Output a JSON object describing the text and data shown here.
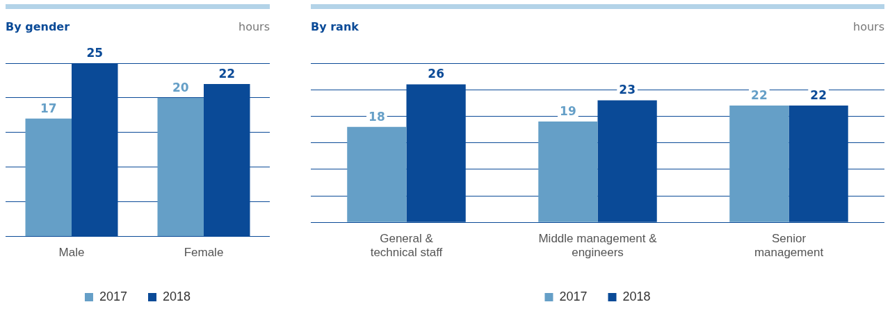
{
  "chart_data": [
    {
      "type": "bar",
      "title": "By gender",
      "annotations": [
        "hours"
      ],
      "categories": [
        "Male",
        "Female"
      ],
      "series": [
        {
          "name": "2017",
          "color": "#659fc7",
          "values": [
            17,
            20
          ]
        },
        {
          "name": "2018",
          "color": "#0a4a97",
          "values": [
            25,
            22
          ]
        }
      ],
      "ylim": [
        0,
        25
      ],
      "yticks": [
        {
          "value": 0,
          "label": null
        },
        {
          "value": 5,
          "label": null
        },
        {
          "value": 10,
          "label": null
        },
        {
          "value": 15,
          "label": null
        },
        {
          "value": 20,
          "label": null
        },
        {
          "value": 25,
          "label": null
        }
      ],
      "grid": "y",
      "tick_labels": "x",
      "data_labels": true,
      "legend": "bottom"
    },
    {
      "type": "bar",
      "title": "By rank",
      "annotations": [
        "hours"
      ],
      "categories": [
        "General & technical staff",
        "Middle management & engineers",
        "Senior management"
      ],
      "series": [
        {
          "name": "2017",
          "color": "#659fc7",
          "values": [
            18,
            19,
            22
          ]
        },
        {
          "name": "2018",
          "color": "#0a4a97",
          "values": [
            26,
            23,
            22
          ]
        }
      ],
      "ylim": [
        0,
        30
      ],
      "yticks": [
        {
          "value": 0,
          "label": null
        },
        {
          "value": 5,
          "label": null
        },
        {
          "value": 10,
          "label": null
        },
        {
          "value": 15,
          "label": null
        },
        {
          "value": 20,
          "label": null
        },
        {
          "value": 25,
          "label": null
        },
        {
          "value": 30,
          "label": null
        }
      ],
      "grid": "y",
      "tick_labels": "x",
      "data_labels": true,
      "legend": "bottom"
    }
  ]
}
